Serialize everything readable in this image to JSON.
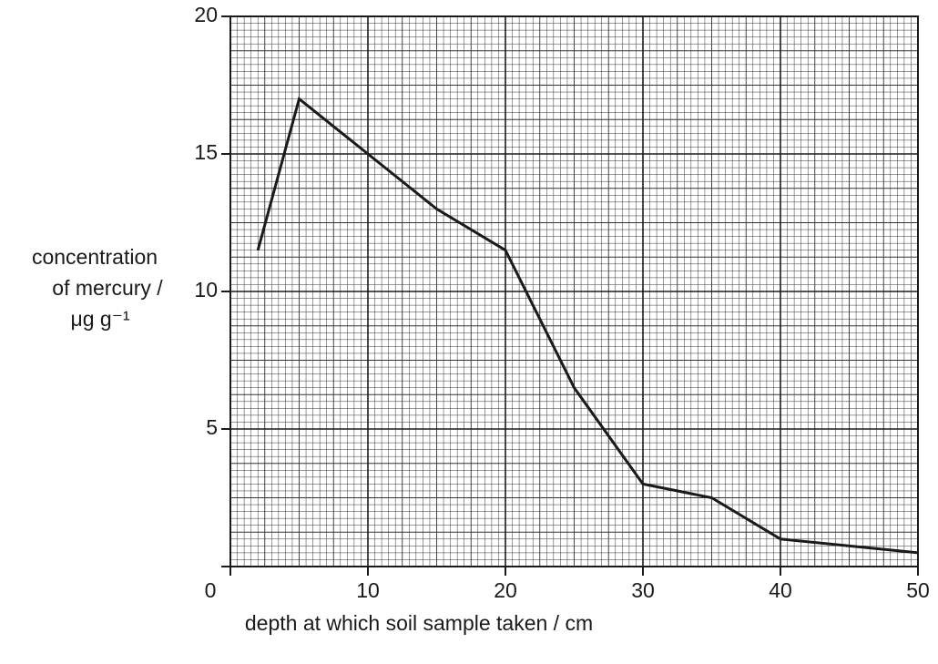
{
  "chart_data": {
    "type": "line",
    "y_label_lines": [
      "concentration",
      "of mercury /",
      "μg g⁻¹"
    ],
    "x_label": "depth at which soil sample taken / cm",
    "x": [
      2,
      5,
      10,
      15,
      20,
      25,
      30,
      35,
      40,
      50
    ],
    "series": [
      {
        "color": "#1a1a1a",
        "values": [
          11.5,
          17,
          15,
          13,
          11.5,
          6.5,
          3,
          2.5,
          1,
          0.5
        ]
      }
    ],
    "xlim": [
      0,
      50
    ],
    "ylim": [
      0,
      20
    ],
    "xticks": [
      0,
      10,
      20,
      30,
      40,
      50
    ],
    "yticks": [
      5,
      10,
      15,
      20
    ],
    "grid": true
  }
}
